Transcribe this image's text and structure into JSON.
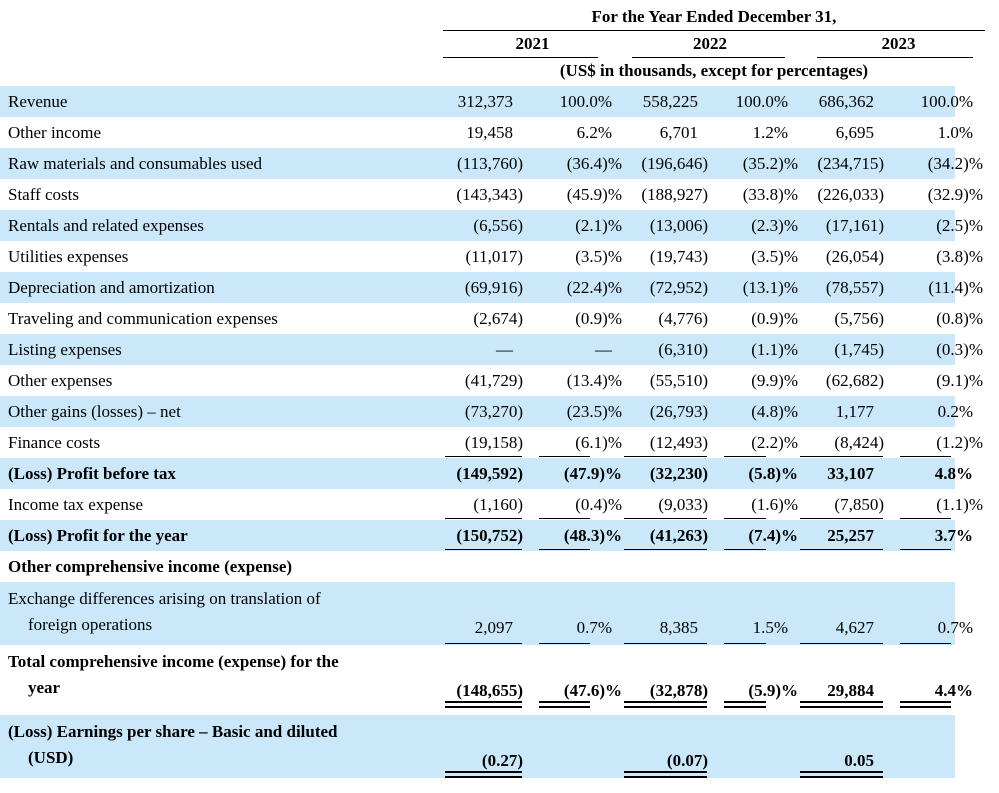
{
  "header": {
    "title": "For the Year Ended December 31,",
    "years": [
      "2021",
      "2022",
      "2023"
    ],
    "subtitle": "(US$ in thousands, except for percentages)"
  },
  "colors": {
    "stripe_blue": "#cbe8fa",
    "text": "#000000"
  },
  "table": {
    "columns": [
      "label",
      "2021_value",
      "2021_pct",
      "2022_value",
      "2022_pct",
      "2023_value",
      "2023_pct"
    ],
    "rows": [
      {
        "label": "Revenue",
        "cells": [
          "312,373",
          "100.0%",
          "558,225",
          "100.0%",
          "686,362",
          "100.0%"
        ]
      },
      {
        "label": "Other income",
        "cells": [
          "19,458",
          "6.2%",
          "6,701",
          "1.2%",
          "6,695",
          "1.0%"
        ]
      },
      {
        "label": "Raw materials and consumables used",
        "cells": [
          "(113,760)",
          "(36.4)%",
          "(196,646)",
          "(35.2)%",
          "(234,715)",
          "(34.2)%"
        ]
      },
      {
        "label": "Staff costs",
        "cells": [
          "(143,343)",
          "(45.9)%",
          "(188,927)",
          "(33.8)%",
          "(226,033)",
          "(32.9)%"
        ]
      },
      {
        "label": "Rentals and related expenses",
        "cells": [
          "(6,556)",
          "(2.1)%",
          "(13,006)",
          "(2.3)%",
          "(17,161)",
          "(2.5)%"
        ]
      },
      {
        "label": "Utilities expenses",
        "cells": [
          "(11,017)",
          "(3.5)%",
          "(19,743)",
          "(3.5)%",
          "(26,054)",
          "(3.8)%"
        ]
      },
      {
        "label": "Depreciation and amortization",
        "cells": [
          "(69,916)",
          "(22.4)%",
          "(72,952)",
          "(13.1)%",
          "(78,557)",
          "(11.4)%"
        ]
      },
      {
        "label": "Traveling and communication expenses",
        "cells": [
          "(2,674)",
          "(0.9)%",
          "(4,776)",
          "(0.9)%",
          "(5,756)",
          "(0.8)%"
        ]
      },
      {
        "label": "Listing expenses",
        "cells": [
          "—",
          "—",
          "(6,310)",
          "(1.1)%",
          "(1,745)",
          "(0.3)%"
        ]
      },
      {
        "label": "Other expenses",
        "cells": [
          "(41,729)",
          "(13.4)%",
          "(55,510)",
          "(9.9)%",
          "(62,682)",
          "(9.1)%"
        ]
      },
      {
        "label": "Other gains (losses) – net",
        "cells": [
          "(73,270)",
          "(23.5)%",
          "(26,793)",
          "(4.8)%",
          "1,177",
          "0.2%"
        ]
      },
      {
        "label": "Finance costs",
        "underline": "single",
        "cells": [
          "(19,158)",
          "(6.1)%",
          "(12,493)",
          "(2.2)%",
          "(8,424)",
          "(1.2)%"
        ]
      },
      {
        "label": "(Loss) Profit before tax",
        "bold": true,
        "cells": [
          "(149,592)",
          "(47.9)%",
          "(32,230)",
          "(5.8)%",
          "33,107",
          "4.8%"
        ]
      },
      {
        "label": "Income tax expense",
        "underline": "single",
        "cells": [
          "(1,160)",
          "(0.4)%",
          "(9,033)",
          "(1.6)%",
          "(7,850)",
          "(1.1)%"
        ]
      },
      {
        "label": "(Loss) Profit for the year",
        "bold": true,
        "underline": "single",
        "cells": [
          "(150,752)",
          "(48.3)%",
          "(41,263)",
          "(7.4)%",
          "25,257",
          "3.7%"
        ]
      },
      {
        "label": "Other comprehensive income (expense)",
        "bold": true,
        "cells": [
          "",
          "",
          "",
          "",
          "",
          ""
        ]
      },
      {
        "label": "Exchange differences arising on translation of",
        "label2": "foreign operations",
        "underline": "single",
        "cells": [
          "2,097",
          "0.7%",
          "8,385",
          "1.5%",
          "4,627",
          "0.7%"
        ]
      },
      {
        "label": "Total comprehensive income (expense) for the",
        "label2": "year",
        "bold": true,
        "underline": "double",
        "cells": [
          "(148,655)",
          "(47.6)%",
          "(32,878)",
          "(5.9)%",
          "29,884",
          "4.4%"
        ]
      },
      {
        "label": "(Loss) Earnings per share – Basic and diluted",
        "label2": "(USD)",
        "bold": true,
        "underline": "double",
        "cells": [
          "(0.27)",
          "",
          "(0.07)",
          "",
          "0.05",
          ""
        ]
      }
    ]
  }
}
